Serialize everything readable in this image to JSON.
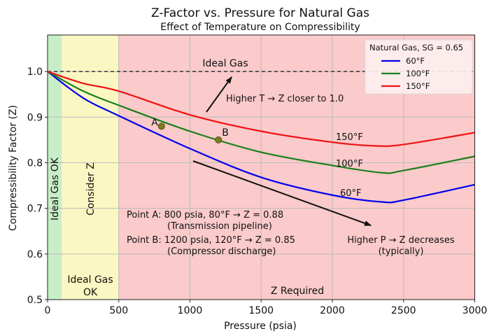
{
  "chart_data": {
    "type": "line",
    "title": "Z-Factor vs. Pressure for Natural Gas",
    "subtitle": "Effect of Temperature on Compressibility",
    "xlabel": "Pressure (psia)",
    "ylabel": "Compressibility Factor (Z)",
    "xlim": [
      0,
      3000
    ],
    "ylim": [
      0.5,
      1.08
    ],
    "xticks": [
      "0",
      "500",
      "1000",
      "1500",
      "2000",
      "2500",
      "3000"
    ],
    "yticks": [
      "0.5",
      "0.6",
      "0.7",
      "0.8",
      "0.9",
      "1.0"
    ],
    "grid": true,
    "legend": {
      "title": "Natural Gas, SG = 0.65",
      "placement": "top-right"
    },
    "series": [
      {
        "name": "60°F",
        "color": "#0000ee",
        "label": "60°F",
        "points": [
          [
            0,
            1.0
          ],
          [
            250,
            0.942
          ],
          [
            500,
            0.903
          ],
          [
            1000,
            0.831
          ],
          [
            1500,
            0.768
          ],
          [
            2000,
            0.729
          ],
          [
            2350,
            0.714
          ],
          [
            2500,
            0.718
          ],
          [
            3000,
            0.752
          ]
        ]
      },
      {
        "name": "100°F",
        "color": "#1a7f1a",
        "label": "100°F",
        "points": [
          [
            0,
            1.0
          ],
          [
            250,
            0.957
          ],
          [
            500,
            0.926
          ],
          [
            1000,
            0.869
          ],
          [
            1500,
            0.823
          ],
          [
            2000,
            0.794
          ],
          [
            2350,
            0.778
          ],
          [
            2500,
            0.783
          ],
          [
            3000,
            0.814
          ]
        ]
      },
      {
        "name": "150°F",
        "color": "#ee1111",
        "label": "150°F",
        "points": [
          [
            0,
            1.0
          ],
          [
            250,
            0.974
          ],
          [
            500,
            0.957
          ],
          [
            1000,
            0.905
          ],
          [
            1500,
            0.869
          ],
          [
            2000,
            0.845
          ],
          [
            2300,
            0.837
          ],
          [
            2500,
            0.84
          ],
          [
            3000,
            0.866
          ]
        ]
      }
    ],
    "regions": [
      {
        "range": [
          0,
          100
        ],
        "color": "#c8eec8",
        "label": "Ideal Gas OK"
      },
      {
        "range": [
          100,
          500
        ],
        "color": "#fbf7c2",
        "label": "Consider Z",
        "label2": [
          "Ideal Gas",
          "OK"
        ]
      },
      {
        "range": [
          500,
          3000
        ],
        "color": "#fbcaca",
        "label": "Z Required"
      }
    ],
    "reference_line": {
      "y": 1.0,
      "label": "Ideal Gas"
    },
    "points": [
      {
        "label": "A",
        "x": 800,
        "y": 0.88
      },
      {
        "label": "B",
        "x": 1200,
        "y": 0.85
      }
    ],
    "annotations": {
      "higher_t": "Higher T → Z closer to 1.0",
      "higher_p": [
        "Higher P → Z decreases",
        "(typically)"
      ],
      "point_a": [
        "Point A: 800 psia, 80°F → Z = 0.88",
        "(Transmission pipeline)"
      ],
      "point_b": [
        "Point B: 1200 psia, 120°F → Z = 0.85",
        "(Compressor discharge)"
      ]
    }
  }
}
